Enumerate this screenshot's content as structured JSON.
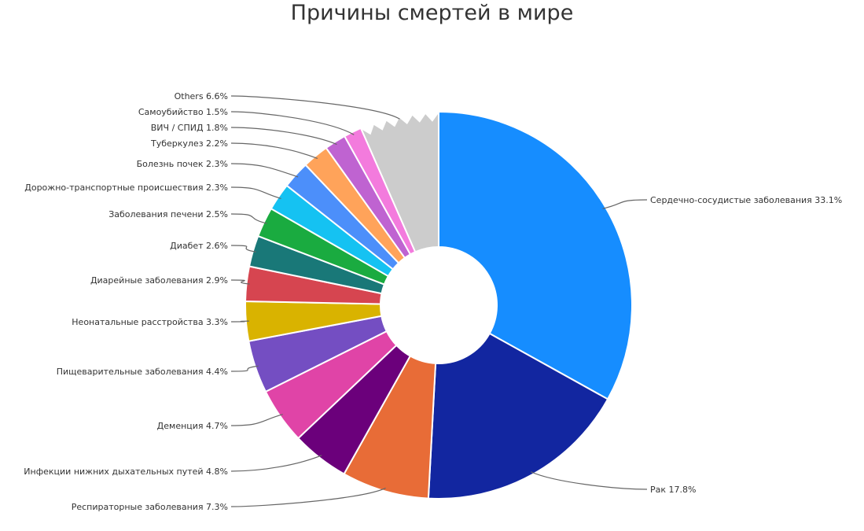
{
  "chart_data": {
    "type": "pie",
    "title": "Причины смертей в мире",
    "donut": true,
    "slices": [
      {
        "label": "Сердечно-сосудистые заболевания",
        "value": 33.1,
        "display": "Сердечно-сосудистые заболевания 33.1%",
        "color": "#168dff"
      },
      {
        "label": "Рак",
        "value": 17.8,
        "display": "Рак 17.8%",
        "color": "#1226a0"
      },
      {
        "label": "Респираторные заболевания",
        "value": 7.3,
        "display": "Респираторные заболевания 7.3%",
        "color": "#e86c37"
      },
      {
        "label": "Инфекции нижних дыхательных путей",
        "value": 4.8,
        "display": "Инфекции нижних дыхательных путей 4.8%",
        "color": "#6b007b"
      },
      {
        "label": "Деменция",
        "value": 4.7,
        "display": "Деменция 4.7%",
        "color": "#e044a7"
      },
      {
        "label": "Пищеварительные заболевания",
        "value": 4.4,
        "display": "Пищеварительные заболевания 4.4%",
        "color": "#744ec2"
      },
      {
        "label": "Неонатальные расстройства",
        "value": 3.3,
        "display": "Неонатальные расстройства 3.3%",
        "color": "#d9b300"
      },
      {
        "label": "Диарейные заболевания",
        "value": 2.9,
        "display": "Диарейные заболевания 2.9%",
        "color": "#d64550"
      },
      {
        "label": "Диабет",
        "value": 2.6,
        "display": "Диабет 2.6%",
        "color": "#197878"
      },
      {
        "label": "Заболевания печени",
        "value": 2.5,
        "display": "Заболевания печени 2.5%",
        "color": "#1aab40"
      },
      {
        "label": "Дорожно-транспортные происшествия",
        "value": 2.3,
        "display": "Дорожно-транспортные происшествия 2.3%",
        "color": "#15c2f2"
      },
      {
        "label": "Болезнь почек",
        "value": 2.3,
        "display": "Болезнь почек 2.3%",
        "color": "#4c8ffa"
      },
      {
        "label": "Туберкулез",
        "value": 2.2,
        "display": "Туберкулез 2.2%",
        "color": "#ffa35a"
      },
      {
        "label": "ВИЧ / СПИД",
        "value": 1.8,
        "display": "ВИЧ / СПИД 1.8%",
        "color": "#bf63d1"
      },
      {
        "label": "Самоубийство",
        "value": 1.5,
        "display": "Самоубийство 1.5%",
        "color": "#f37bdd"
      },
      {
        "label": "Others",
        "value": 6.6,
        "display": "Others 6.6%",
        "color": "#cccccc",
        "jagged": true
      }
    ]
  }
}
